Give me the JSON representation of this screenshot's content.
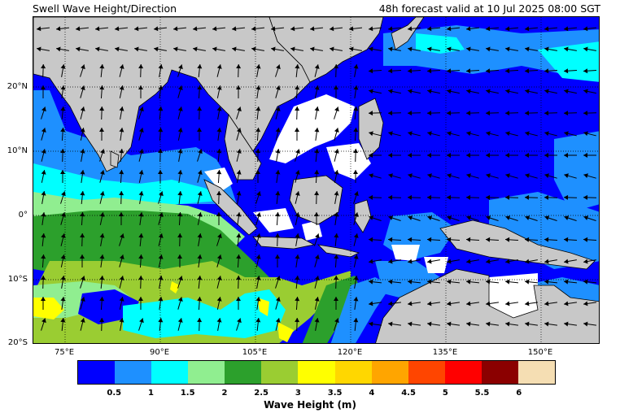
{
  "title_left": "Swell Wave Height/Direction",
  "title_right": "48h forecast valid at 10 Jul 2025 08:00 SGT",
  "lat_labels": [
    "20°N",
    "10°N",
    "0°",
    "10°S",
    "20°S"
  ],
  "lon_labels": [
    "75°E",
    "90°E",
    "105°E",
    "120°E",
    "135°E",
    "150°E"
  ],
  "map_extent": {
    "lon_min": 70,
    "lon_max": 159,
    "lat_min": -20,
    "lat_max": 31
  },
  "colorbar": {
    "title": "Wave Height (m)",
    "tick_labels": [
      "0.5",
      "1",
      "1.5",
      "2",
      "2.5",
      "3",
      "3.5",
      "4",
      "4.5",
      "5",
      "5.5",
      "6"
    ],
    "colors": [
      "#0000ff",
      "#1e90ff",
      "#00ffff",
      "#90ee90",
      "#2ca02c",
      "#9acd32",
      "#ffff00",
      "#ffd700",
      "#ffa500",
      "#ff4500",
      "#ff0000",
      "#8b0000",
      "#f5deb3"
    ]
  },
  "colors": {
    "land": "#c8c8c8",
    "calm": "#ffffff",
    "arrow": "#000000"
  }
}
